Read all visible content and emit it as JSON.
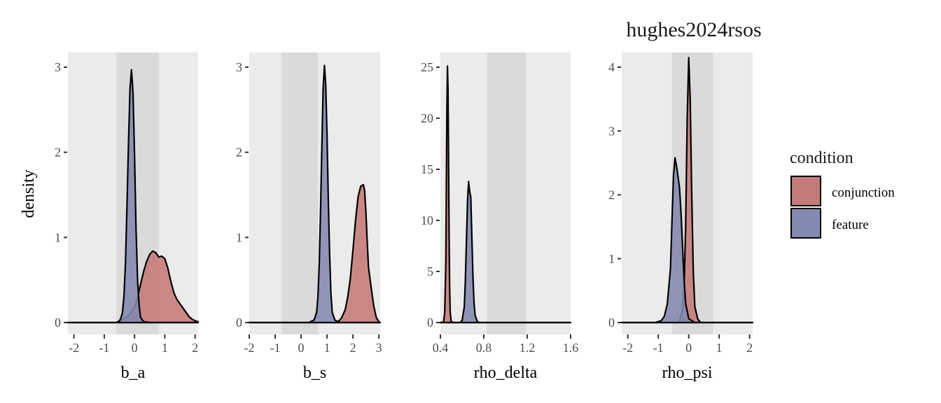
{
  "figure": {
    "title": "hughes2024rsos",
    "ylabel": "density"
  },
  "legend": {
    "title": "condition",
    "position": "right",
    "items": [
      {
        "label": "conjunction",
        "color": "#C47A78"
      },
      {
        "label": "feature",
        "color": "#8389B0"
      }
    ]
  },
  "colors": {
    "panel_bg": "#EBEBEB",
    "band_bg": "#DADADA",
    "conjunction": "#C47A78",
    "feature": "#8389B0",
    "outline": "#000000"
  },
  "chart_data": [
    {
      "type": "area",
      "xlabel": "b_a",
      "xlim": [
        -2.2,
        2.1
      ],
      "ylim": [
        0,
        3.15
      ],
      "xticks": [
        -2,
        -1,
        0,
        1,
        2
      ],
      "xtick_labels": [
        "-2",
        "-1",
        "0",
        "1",
        "2"
      ],
      "yticks": [
        0,
        1,
        2,
        3
      ],
      "ytick_labels": [
        "0",
        "1",
        "2",
        "3"
      ],
      "band": [
        -0.6,
        0.8
      ],
      "series": [
        {
          "name": "conjunction",
          "x": [
            -2.2,
            -0.6,
            -0.4,
            -0.2,
            0,
            0.1,
            0.2,
            0.3,
            0.4,
            0.5,
            0.6,
            0.7,
            0.8,
            0.9,
            1.0,
            1.1,
            1.2,
            1.3,
            1.4,
            1.5,
            1.6,
            1.7,
            1.8,
            1.9,
            2.0,
            2.1
          ],
          "values": [
            0,
            0,
            0.03,
            0.08,
            0.18,
            0.3,
            0.45,
            0.6,
            0.72,
            0.8,
            0.84,
            0.82,
            0.77,
            0.78,
            0.75,
            0.64,
            0.48,
            0.35,
            0.27,
            0.22,
            0.17,
            0.12,
            0.07,
            0.04,
            0.02,
            0.01
          ]
        },
        {
          "name": "feature",
          "x": [
            -2.2,
            -0.6,
            -0.5,
            -0.45,
            -0.4,
            -0.35,
            -0.3,
            -0.25,
            -0.2,
            -0.15,
            -0.1,
            -0.05,
            0,
            0.05,
            0.1,
            0.15,
            0.2,
            0.3,
            0.5,
            2.1
          ],
          "values": [
            0,
            0,
            0.02,
            0.05,
            0.12,
            0.3,
            0.7,
            1.35,
            2.1,
            2.75,
            2.97,
            2.7,
            1.95,
            1.1,
            0.5,
            0.2,
            0.06,
            0.01,
            0,
            0
          ]
        }
      ]
    },
    {
      "type": "area",
      "xlabel": "b_s",
      "xlim": [
        -2,
        3.05
      ],
      "ylim": [
        0,
        3.15
      ],
      "xticks": [
        -2,
        -1,
        0,
        1,
        2,
        3
      ],
      "xtick_labels": [
        "-2",
        "-1",
        "0",
        "1",
        "2",
        "3"
      ],
      "yticks": [
        0,
        1,
        2,
        3
      ],
      "ytick_labels": [
        "0",
        "1",
        "2",
        "3"
      ],
      "band": [
        -0.75,
        0.65
      ],
      "series": [
        {
          "name": "conjunction",
          "x": [
            -2,
            1.4,
            1.55,
            1.7,
            1.8,
            1.9,
            2.0,
            2.1,
            2.2,
            2.3,
            2.4,
            2.45,
            2.5,
            2.55,
            2.6,
            2.7,
            2.8,
            2.9,
            3.0,
            3.05
          ],
          "values": [
            0,
            0,
            0.05,
            0.15,
            0.3,
            0.52,
            0.85,
            1.2,
            1.48,
            1.6,
            1.62,
            1.55,
            1.3,
            0.95,
            0.65,
            0.42,
            0.2,
            0.06,
            0.01,
            0
          ]
        },
        {
          "name": "feature",
          "x": [
            -2,
            0.3,
            0.5,
            0.6,
            0.65,
            0.7,
            0.75,
            0.8,
            0.85,
            0.9,
            0.95,
            1.0,
            1.05,
            1.1,
            1.15,
            1.2,
            1.3,
            1.5,
            3.05
          ],
          "values": [
            0,
            0,
            0.03,
            0.12,
            0.3,
            0.7,
            1.3,
            2.05,
            2.75,
            3.02,
            2.8,
            2.2,
            1.45,
            0.8,
            0.35,
            0.12,
            0.03,
            0,
            0
          ]
        }
      ]
    },
    {
      "type": "area",
      "xlabel": "rho_delta",
      "xlim": [
        0.4,
        1.6
      ],
      "ylim": [
        0,
        26
      ],
      "xticks": [
        0.4,
        0.8,
        1.2,
        1.6
      ],
      "xtick_labels": [
        "0.4",
        "0.8",
        "1.2",
        "1.6"
      ],
      "yticks": [
        0,
        5,
        10,
        15,
        20,
        25
      ],
      "ytick_labels": [
        "0",
        "5",
        "10",
        "15",
        "20",
        "25"
      ],
      "band": [
        0.83,
        1.19
      ],
      "series": [
        {
          "name": "conjunction",
          "x": [
            0.4,
            0.43,
            0.44,
            0.45,
            0.455,
            0.46,
            0.465,
            0.47,
            0.475,
            0.48,
            0.485,
            0.49,
            0.5,
            0.52,
            1.6
          ],
          "values": [
            0,
            0.05,
            1.0,
            6.0,
            13.5,
            21.0,
            25.1,
            23.0,
            17.0,
            9.0,
            3.5,
            1.0,
            0.1,
            0,
            0
          ]
        },
        {
          "name": "feature",
          "x": [
            0.4,
            0.58,
            0.6,
            0.62,
            0.63,
            0.64,
            0.65,
            0.66,
            0.67,
            0.68,
            0.69,
            0.7,
            0.71,
            0.72,
            0.74,
            0.76,
            1.6
          ],
          "values": [
            0,
            0,
            0.2,
            1.5,
            4.0,
            8.0,
            12.0,
            13.8,
            12.8,
            12.3,
            8.5,
            4.5,
            2.0,
            0.7,
            0.1,
            0,
            0
          ]
        }
      ]
    },
    {
      "type": "area",
      "xlabel": "rho_psi",
      "xlim": [
        -2.2,
        2.1
      ],
      "ylim": [
        0,
        4.3
      ],
      "xticks": [
        -2,
        -1,
        0,
        1,
        2
      ],
      "xtick_labels": [
        "-2",
        "-1",
        "0",
        "1",
        "2"
      ],
      "yticks": [
        0,
        1,
        2,
        3,
        4
      ],
      "ytick_labels": [
        "0",
        "1",
        "2",
        "3",
        "4"
      ],
      "band": [
        -0.55,
        0.8
      ],
      "series": [
        {
          "name": "conjunction",
          "x": [
            -2.2,
            -0.4,
            -0.3,
            -0.2,
            -0.15,
            -0.1,
            -0.05,
            0,
            0.05,
            0.1,
            0.15,
            0.2,
            0.3,
            0.4,
            2.1
          ],
          "values": [
            0,
            0,
            0.03,
            0.2,
            0.6,
            1.5,
            3.2,
            4.15,
            3.5,
            2.0,
            0.8,
            0.25,
            0.05,
            0,
            0
          ]
        },
        {
          "name": "feature",
          "x": [
            -2.2,
            -1.1,
            -0.9,
            -0.8,
            -0.7,
            -0.6,
            -0.55,
            -0.5,
            -0.45,
            -0.4,
            -0.35,
            -0.3,
            -0.25,
            -0.2,
            -0.15,
            -0.1,
            0,
            0.2,
            2.1
          ],
          "values": [
            0,
            0,
            0.03,
            0.1,
            0.3,
            0.85,
            1.6,
            2.3,
            2.58,
            2.45,
            2.28,
            2.1,
            1.7,
            1.15,
            0.65,
            0.3,
            0.06,
            0,
            0
          ]
        }
      ]
    }
  ]
}
